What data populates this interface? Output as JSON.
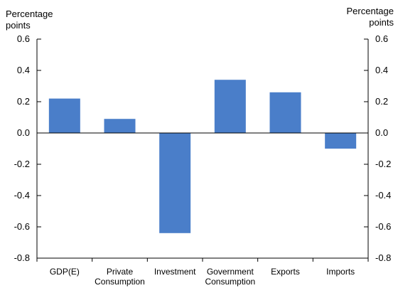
{
  "chart_data": {
    "type": "bar",
    "categories": [
      [
        "GDP(E)"
      ],
      [
        "Private",
        "Consumption"
      ],
      [
        "Investment"
      ],
      [
        "Government",
        "Consumption"
      ],
      [
        "Exports"
      ],
      [
        "Imports"
      ]
    ],
    "values": [
      0.22,
      0.09,
      -0.64,
      0.34,
      0.26,
      -0.1
    ],
    "ylabel_left": [
      "Percentage",
      "points"
    ],
    "ylabel_right": [
      "Percentage",
      "points"
    ],
    "ylim": [
      -0.8,
      0.6
    ],
    "yticks": [
      0.6,
      0.4,
      0.2,
      0.0,
      -0.2,
      -0.4,
      -0.6,
      -0.8
    ],
    "ytick_labels": [
      "0.6",
      "0.4",
      "0.2",
      "0.0",
      "-0.2",
      "-0.4",
      "-0.6",
      "-0.8"
    ],
    "bar_color": "#4a7ec9",
    "grid": false,
    "legend": "none"
  }
}
